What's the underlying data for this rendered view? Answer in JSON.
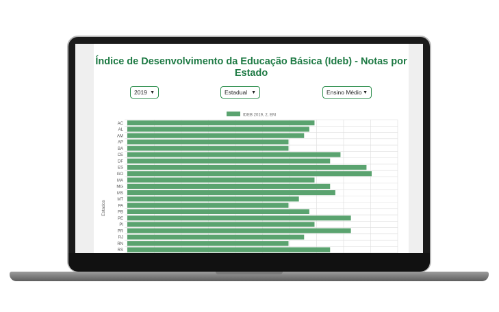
{
  "page": {
    "title": "Índice de Desenvolvimento da Educação Básica (Ideb) - Notas por Estado"
  },
  "filters": {
    "year": {
      "value": "2019",
      "icon": "chevron-down-icon"
    },
    "network": {
      "value": "Estadual",
      "icon": "chevron-down-icon"
    },
    "level": {
      "value": "Ensino Médio",
      "icon": "chevron-down-icon"
    }
  },
  "colors": {
    "bar": "#5aa36f",
    "accent": "#1e7a44",
    "grid": "#dddddd"
  },
  "chart_data": {
    "type": "bar",
    "orientation": "horizontal",
    "ylabel": "Estados",
    "legend": {
      "label": "IDEB 2019, 2, EM",
      "placement": "top-center"
    },
    "grid": true,
    "xlim": [
      0,
      5.2
    ],
    "categories": [
      "AC",
      "AL",
      "AM",
      "AP",
      "BA",
      "CE",
      "DF",
      "ES",
      "GO",
      "MA",
      "MG",
      "MS",
      "MT",
      "PA",
      "PB",
      "PE",
      "PI",
      "PR",
      "RJ",
      "RN",
      "RS"
    ],
    "values": [
      3.6,
      3.5,
      3.4,
      3.1,
      3.1,
      4.1,
      3.9,
      4.6,
      4.7,
      3.6,
      3.9,
      4.0,
      3.3,
      3.1,
      3.5,
      4.3,
      3.6,
      4.3,
      3.4,
      3.1,
      3.9
    ]
  }
}
